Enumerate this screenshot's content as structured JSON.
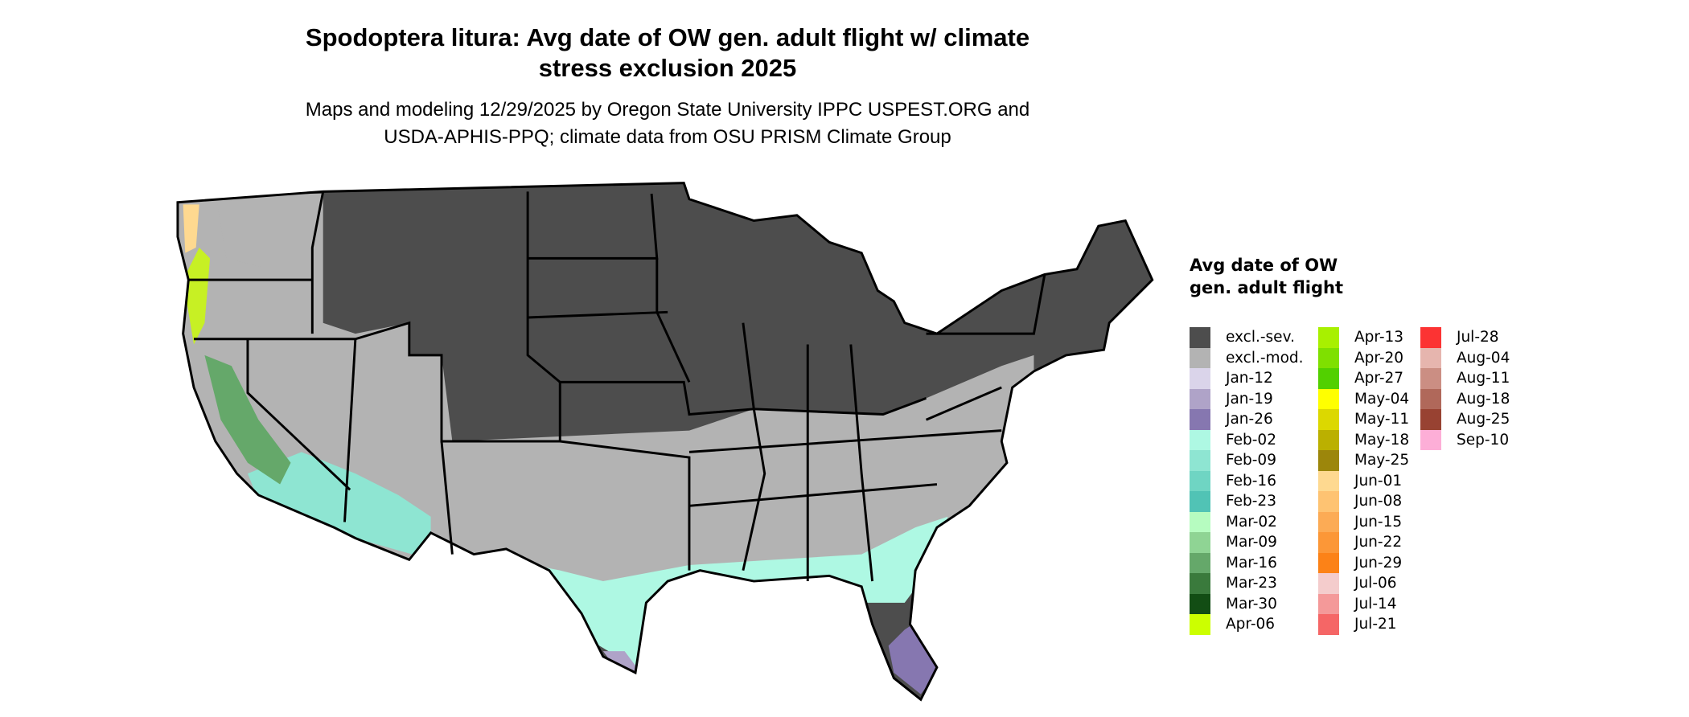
{
  "title": "Spodoptera litura: Avg date of OW gen. adult flight w/ climate stress exclusion 2025",
  "title_lines": [
    "Spodoptera litura: Avg date of OW gen. adult flight w/ climate",
    "stress exclusion 2025"
  ],
  "subtitle_lines": [
    "Maps and modeling 12/29/2025 by Oregon State University IPPC USPEST.ORG and",
    "USDA-APHIS-PPQ; climate data from OSU PRISM Climate Group"
  ],
  "legend": {
    "title": "Avg date of OW gen. adult flight",
    "columns": [
      [
        {
          "label": "excl.-sev.",
          "color": "#4d4d4d"
        },
        {
          "label": "excl.-mod.",
          "color": "#b3b3b3"
        },
        {
          "label": "Jan-12",
          "color": "#dad4ea"
        },
        {
          "label": "Jan-19",
          "color": "#afa3c8"
        },
        {
          "label": "Jan-26",
          "color": "#8677b0"
        },
        {
          "label": "Feb-02",
          "color": "#aef8e3"
        },
        {
          "label": "Feb-09",
          "color": "#8ee5d2"
        },
        {
          "label": "Feb-16",
          "color": "#6fd5c3"
        },
        {
          "label": "Feb-23",
          "color": "#51c3b5"
        },
        {
          "label": "Mar-02",
          "color": "#b6fcc0"
        },
        {
          "label": "Mar-09",
          "color": "#8fd494"
        },
        {
          "label": "Mar-16",
          "color": "#65a86a"
        },
        {
          "label": "Mar-23",
          "color": "#3a7a3c"
        },
        {
          "label": "Mar-30",
          "color": "#124d14"
        },
        {
          "label": "Apr-06",
          "color": "#ccff00"
        }
      ],
      [
        {
          "label": "Apr-13",
          "color": "#a8f000"
        },
        {
          "label": "Apr-20",
          "color": "#7fe000"
        },
        {
          "label": "Apr-27",
          "color": "#52d000"
        },
        {
          "label": "May-04",
          "color": "#ffff00"
        },
        {
          "label": "May-11",
          "color": "#dcd800"
        },
        {
          "label": "May-18",
          "color": "#bbb000"
        },
        {
          "label": "May-25",
          "color": "#9c860b"
        },
        {
          "label": "Jun-01",
          "color": "#fed990"
        },
        {
          "label": "Jun-08",
          "color": "#fec372"
        },
        {
          "label": "Jun-15",
          "color": "#fcab55"
        },
        {
          "label": "Jun-22",
          "color": "#fc9737"
        },
        {
          "label": "Jun-29",
          "color": "#fc8217"
        },
        {
          "label": "Jul-06",
          "color": "#f4cccc"
        },
        {
          "label": "Jul-14",
          "color": "#f49999"
        },
        {
          "label": "Jul-21",
          "color": "#f56666"
        }
      ],
      [
        {
          "label": "Jul-28",
          "color": "#fc3333"
        },
        {
          "label": "Aug-04",
          "color": "#e6b5ae"
        },
        {
          "label": "Aug-11",
          "color": "#cb8e83"
        },
        {
          "label": "Aug-18",
          "color": "#b0685a"
        },
        {
          "label": "Aug-25",
          "color": "#984232"
        },
        {
          "label": "Sep-10",
          "color": "#fdaed7"
        }
      ]
    ]
  }
}
